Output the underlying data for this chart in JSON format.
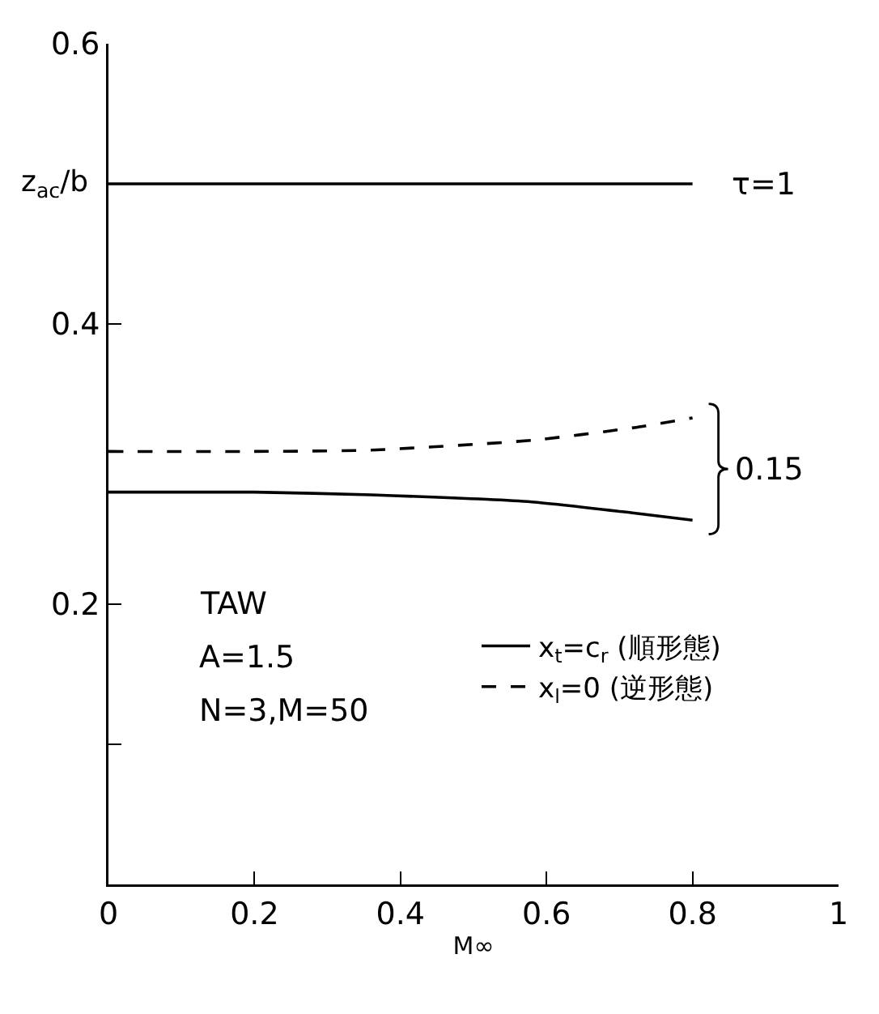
{
  "chart_data": {
    "type": "line",
    "xlabel": "M∞",
    "ylabel": "z$_{ac}$/b",
    "x": [
      0,
      0.2,
      0.36,
      0.58,
      0.72,
      0.8
    ],
    "series": [
      {
        "color": "#000000",
        "line_style": "solid",
        "values": [
          0.5,
          0.5,
          0.5,
          0.5,
          0.5,
          0.5
        ]
      },
      {
        "name": "x$_{t}$=c$_{r}$ (順形態)",
        "color": "#000000",
        "line_style": "solid",
        "values": [
          0.28,
          0.28,
          0.278,
          0.273,
          0.265,
          0.26
        ]
      },
      {
        "name": "x$_{l}$=0 (逆形態)",
        "color": "#000000",
        "line_style": "dashed",
        "values": [
          0.309,
          0.309,
          0.31,
          0.317,
          0.326,
          0.333
        ]
      }
    ],
    "xlim": [
      0,
      1
    ],
    "xticks": [
      0,
      0.2,
      0.4,
      0.6,
      0.8,
      1
    ],
    "ylim": [
      0,
      0.6
    ],
    "yticks": [
      {
        "value": 0.1,
        "label": null
      },
      0.2,
      0.4,
      0.6
    ],
    "grid": false,
    "legend": "bottom right",
    "marker": "none",
    "annotations": [
      {
        "text": "τ=1",
        "x": 0.8,
        "y": 0.5
      },
      "0.15",
      "TAW",
      "A=1.5",
      "N=3,M=50"
    ]
  }
}
